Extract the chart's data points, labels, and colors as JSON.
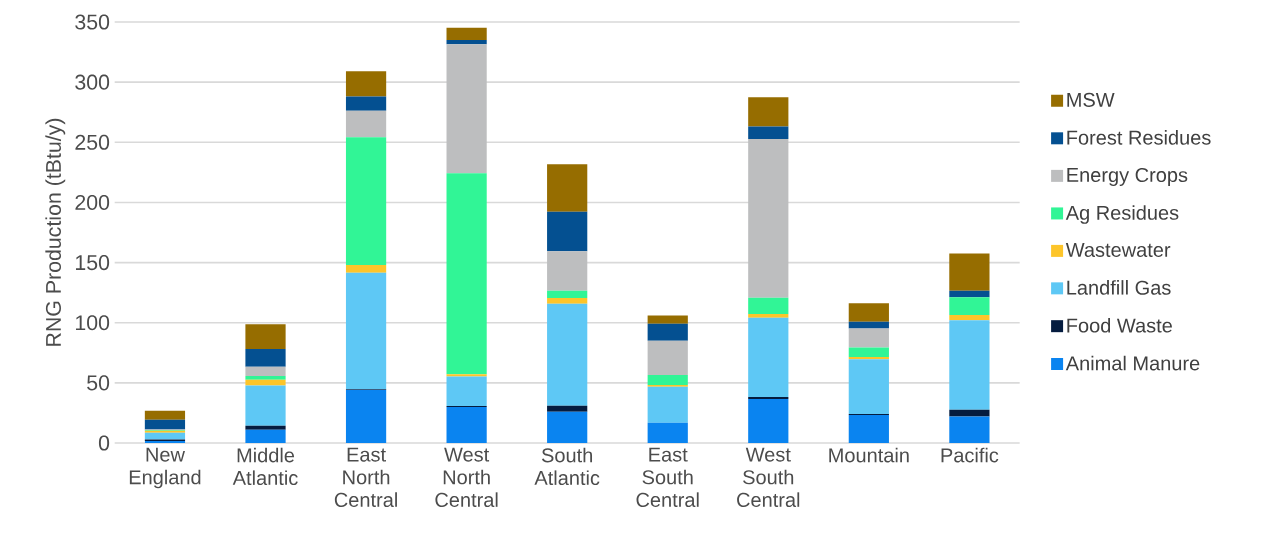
{
  "chart_data": {
    "type": "bar",
    "stacked": true,
    "ylabel": "RNG Production (tBtu/y)",
    "categories": [
      "New England",
      "Middle Atlantic",
      "East North Central",
      "West North Central",
      "South Atlantic",
      "East South Central",
      "West South Central",
      "Mountain",
      "Pacific"
    ],
    "series": [
      {
        "name": "Animal Manure",
        "color": "#0a84f0",
        "values": [
          1.7,
          11.1,
          44.2,
          29.9,
          26.0,
          16.9,
          36.5,
          23.2,
          22.1
        ]
      },
      {
        "name": "Food Waste",
        "color": "#051c3f",
        "values": [
          1.3,
          3.3,
          0.6,
          0.8,
          5.0,
          null,
          1.7,
          0.9,
          5.5
        ]
      },
      {
        "name": "Landfill Gas",
        "color": "#5ec8f5",
        "values": [
          5.6,
          33.4,
          96.8,
          24.6,
          84.8,
          29.9,
          66.0,
          45.6,
          74.4
        ]
      },
      {
        "name": "Wastewater",
        "color": "#fdc52a",
        "values": [
          1.6,
          4.7,
          6.3,
          1.9,
          4.7,
          1.4,
          3.1,
          1.9,
          4.4
        ]
      },
      {
        "name": "Ag Residues",
        "color": "#31f596",
        "values": [
          0.6,
          3.3,
          106.2,
          167.0,
          6.1,
          8.3,
          13.5,
          7.7,
          14.7
        ]
      },
      {
        "name": "Energy Crops",
        "color": "#bdbebf",
        "values": [
          0.5,
          7.5,
          22.1,
          107.3,
          32.9,
          28.5,
          131.9,
          15.8,
          0
        ]
      },
      {
        "name": "Forest Residues",
        "color": "#045091",
        "values": [
          8.1,
          14.9,
          11.9,
          3.6,
          32.7,
          14.1,
          10.5,
          5.8,
          5.5
        ]
      },
      {
        "name": "MSW",
        "color": "#966d00",
        "values": [
          7.4,
          20.5,
          21.0,
          10.2,
          39.5,
          6.9,
          24.3,
          15.2,
          31.0
        ]
      }
    ],
    "ylim": [
      0,
      350
    ],
    "yticks": [
      0,
      50,
      100,
      150,
      200,
      250,
      300,
      350
    ],
    "grid": "y",
    "legend": "right"
  }
}
